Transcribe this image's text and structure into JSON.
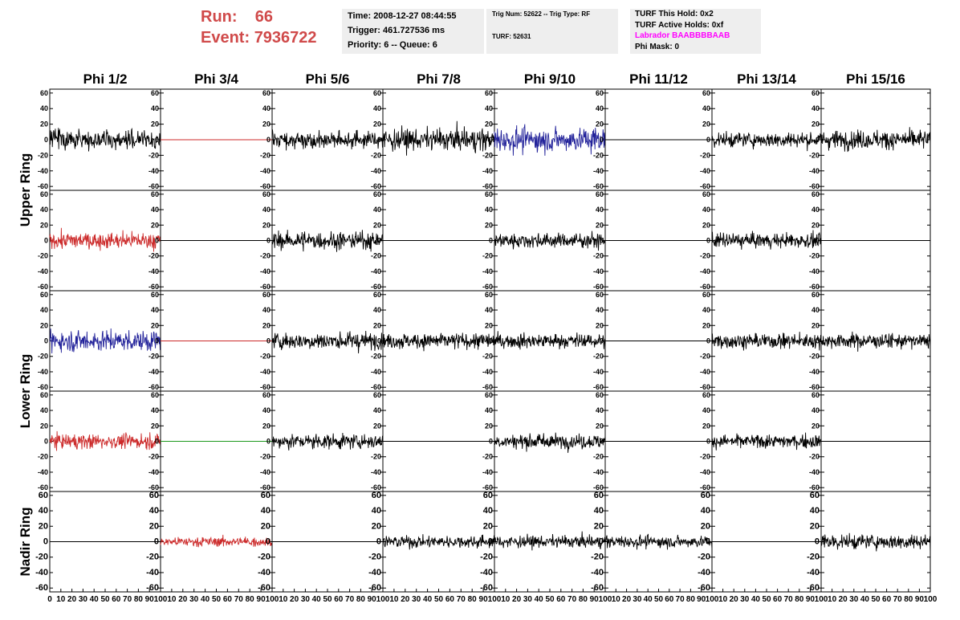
{
  "header": {
    "run_label": "Run:",
    "run_value": "66",
    "event_label": "Event:",
    "event_value": "7936722"
  },
  "time_box": {
    "time": "Time: 2008-12-27 08:44:55",
    "trigger": "Trigger: 461.727536 ms",
    "priority": "Priority: 6 -- Queue: 6"
  },
  "trig_box": {
    "trig": "Trig Num: 52622 -- Trig Type: RF",
    "turf": "TURF: 52631"
  },
  "turf_box": {
    "this_hold": "TURF This Hold: 0x2",
    "active_holds": "TURF Active Holds: 0xf",
    "labrador": "Labrador BAABBBBAAB",
    "phi_mask": "Phi Mask: 0"
  },
  "colors": {
    "red": "#cc2a2a",
    "blue": "#22229a",
    "green": "#1f9a1f",
    "black": "#000000",
    "accent": "#d04a4a",
    "magenta": "#ff00ff"
  },
  "chart_data": {
    "type": "line",
    "columns": [
      "Phi 1/2",
      "Phi 3/4",
      "Phi 5/6",
      "Phi 7/8",
      "Phi 9/10",
      "Phi 11/12",
      "Phi 13/14",
      "Phi 15/16"
    ],
    "rings": [
      "Upper Ring",
      "Lower Ring",
      "Nadir Ring"
    ],
    "xlim": [
      0,
      100
    ],
    "ylim": [
      -65,
      65
    ],
    "xticks": [
      0,
      10,
      20,
      30,
      40,
      50,
      60,
      70,
      80,
      90,
      100
    ],
    "yticks": [
      -60,
      -40,
      -20,
      0,
      20,
      40,
      60
    ],
    "x_range_shown": [
      0,
      100
    ],
    "grid": false,
    "panels": [
      [
        {
          "color": "black",
          "amp": 15,
          "flat": false
        },
        {
          "color": "red",
          "amp": 0,
          "flat": true
        },
        {
          "color": "black",
          "amp": 14,
          "flat": false
        },
        {
          "color": "black",
          "amp": 18,
          "flat": false
        },
        {
          "color": "blue",
          "amp": 20,
          "flat": false
        },
        {
          "color": "black",
          "amp": 0,
          "flat": true
        },
        {
          "color": "black",
          "amp": 12,
          "flat": false
        },
        {
          "color": "black",
          "amp": 15,
          "flat": false
        }
      ],
      [
        {
          "color": "red",
          "amp": 14,
          "flat": false
        },
        {
          "color": "black",
          "amp": 0,
          "flat": true
        },
        {
          "color": "black",
          "amp": 14,
          "flat": false
        },
        {
          "color": "black",
          "amp": 0,
          "flat": true
        },
        {
          "color": "black",
          "amp": 12,
          "flat": false
        },
        {
          "color": "black",
          "amp": 0,
          "flat": true
        },
        {
          "color": "black",
          "amp": 12,
          "flat": false
        },
        {
          "color": "black",
          "amp": 0,
          "flat": true
        }
      ],
      [
        {
          "color": "blue",
          "amp": 17,
          "flat": false
        },
        {
          "color": "red",
          "amp": 0,
          "flat": true
        },
        {
          "color": "black",
          "amp": 14,
          "flat": false
        },
        {
          "color": "black",
          "amp": 13,
          "flat": false
        },
        {
          "color": "black",
          "amp": 12,
          "flat": false
        },
        {
          "color": "black",
          "amp": 0,
          "flat": true
        },
        {
          "color": "black",
          "amp": 12,
          "flat": false
        },
        {
          "color": "black",
          "amp": 12,
          "flat": false
        }
      ],
      [
        {
          "color": "red",
          "amp": 12,
          "flat": false
        },
        {
          "color": "green",
          "amp": 0,
          "flat": true
        },
        {
          "color": "black",
          "amp": 12,
          "flat": false
        },
        {
          "color": "black",
          "amp": 0,
          "flat": true
        },
        {
          "color": "black",
          "amp": 12,
          "flat": false
        },
        {
          "color": "black",
          "amp": 0,
          "flat": true
        },
        {
          "color": "black",
          "amp": 11,
          "flat": false
        },
        {
          "color": "black",
          "amp": 0,
          "flat": true
        }
      ],
      [
        {
          "color": "black",
          "amp": 0,
          "flat": true
        },
        {
          "color": "red",
          "amp": 8,
          "flat": false
        },
        {
          "color": "black",
          "amp": 0,
          "flat": true
        },
        {
          "color": "black",
          "amp": 10,
          "flat": false
        },
        {
          "color": "black",
          "amp": 10,
          "flat": false
        },
        {
          "color": "black",
          "amp": 10,
          "flat": false
        },
        {
          "color": "black",
          "amp": 0,
          "flat": true
        },
        {
          "color": "black",
          "amp": 12,
          "flat": false
        }
      ]
    ]
  }
}
